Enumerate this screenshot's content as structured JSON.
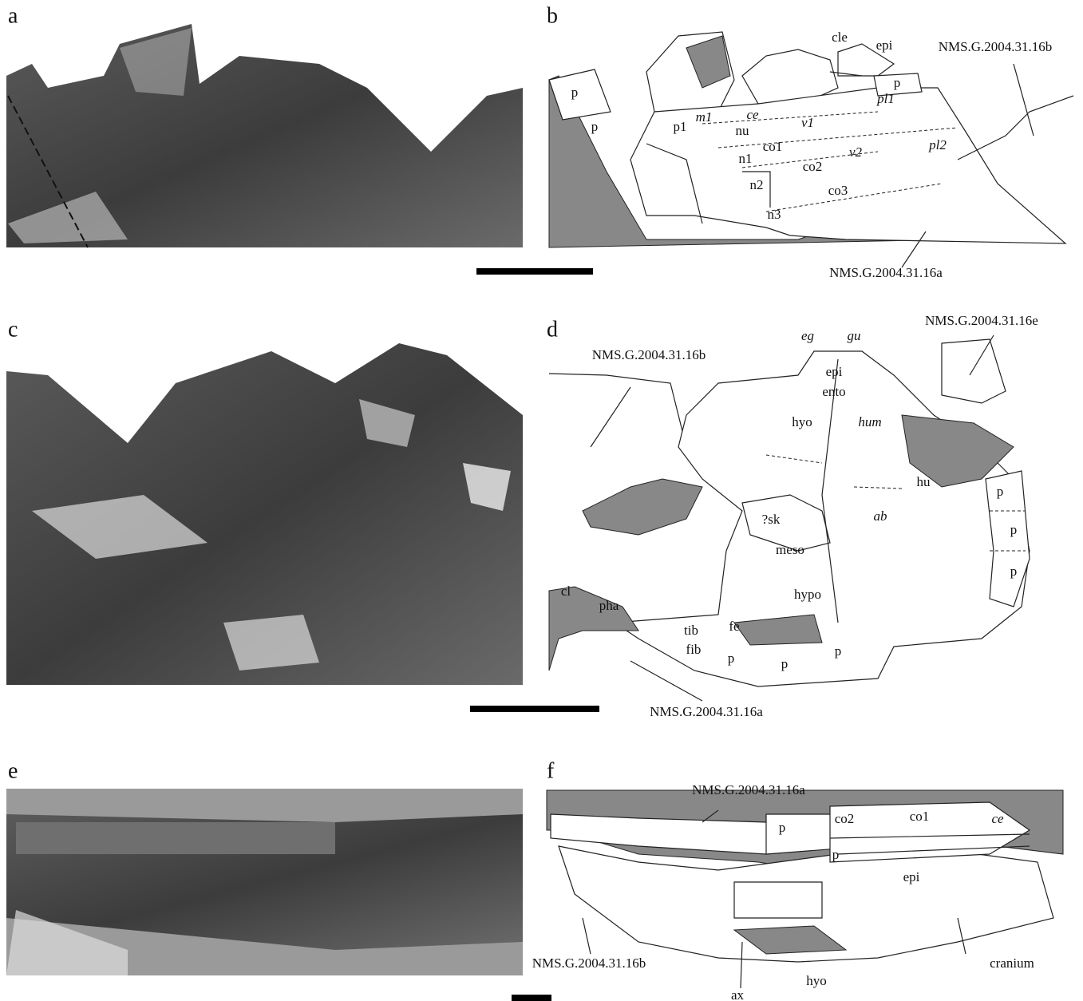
{
  "panels": [
    {
      "letter": "a"
    },
    {
      "letter": "b",
      "labels": [
        "p",
        "p",
        "p1",
        "m1",
        "ce",
        "nu",
        "v1",
        "pl1",
        "cle",
        "epi",
        "p",
        "n1",
        "co1",
        "v2",
        "pl2",
        "co2",
        "n2",
        "co3",
        "n3",
        "NMS.G.2004.31.16b",
        "NMS.G.2004.31.16a"
      ]
    },
    {
      "letter": "c"
    },
    {
      "letter": "d",
      "labels": [
        "eg",
        "gu",
        "epi",
        "ento",
        "NMS.G.2004.31.16e",
        "NMS.G.2004.31.16b",
        "hyo",
        "hum",
        "hu",
        "p",
        "p",
        "p",
        "ab",
        "?sk",
        "meso",
        "cl",
        "pha",
        "tib",
        "fe",
        "hypo",
        "fib",
        "p",
        "p",
        "p",
        "NMS.G.2004.31.16a"
      ]
    },
    {
      "letter": "e"
    },
    {
      "letter": "f",
      "labels": [
        "NMS.G.2004.31.16a",
        "co2",
        "co1",
        "ce",
        "p",
        "p",
        "epi",
        "cranium",
        "NMS.G.2004.31.16b",
        "hyo",
        "ax"
      ]
    }
  ]
}
